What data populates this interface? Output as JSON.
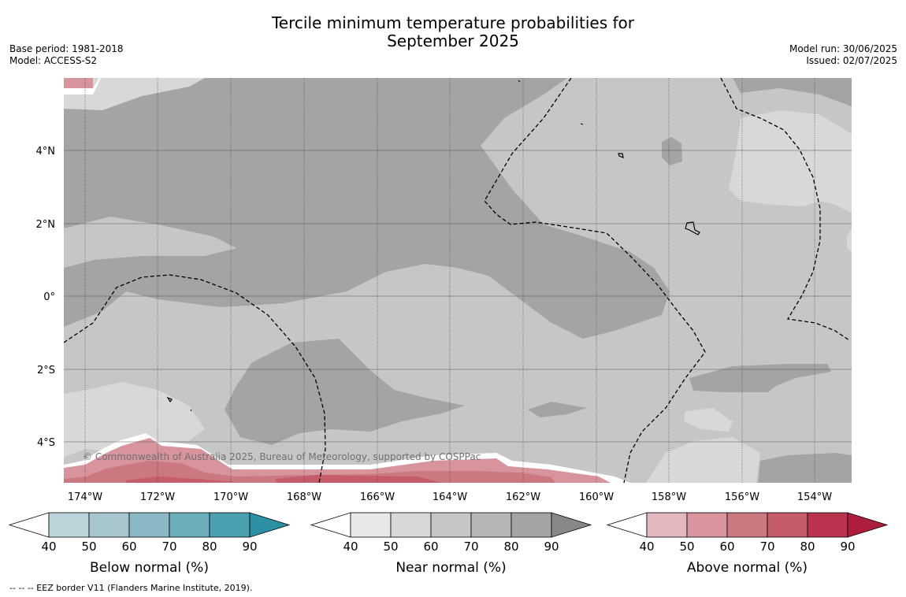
{
  "title_line1": "Tercile minimum temperature probabilities for",
  "title_line2": "September 2025",
  "base_period": "Base period: 1981-2018",
  "model": "Model: ACCESS-S2",
  "model_run": "Model run: 30/06/2025",
  "issued": "Issued: 02/07/2025",
  "copyright": "© Commonwealth of Australia 2025, Bureau of Meteorology, supported by COSPPac",
  "footnote": "--  --  -- EEZ border V11 (Flanders Marine Institute, 2019).",
  "lon_labels": [
    "174°W",
    "172°W",
    "170°W",
    "168°W",
    "166°W",
    "164°W",
    "162°W",
    "160°W",
    "158°W",
    "156°W",
    "154°W"
  ],
  "lat_labels": [
    "4°N",
    "2°N",
    "0°",
    "2°S",
    "4°S"
  ],
  "colorbars": [
    {
      "title": "Below normal (%)",
      "ticks": [
        "40",
        "50",
        "60",
        "70",
        "80",
        "90"
      ],
      "colors": [
        "#ffffff",
        "#bcd4da",
        "#a6c6cc",
        "#8ab8c4",
        "#6aaebc",
        "#4aa0b0",
        "#2e90a4"
      ]
    },
    {
      "title": "Near normal (%)",
      "ticks": [
        "40",
        "50",
        "60",
        "70",
        "80",
        "90"
      ],
      "colors": [
        "#ffffff",
        "#e8e8e8",
        "#d8d8d8",
        "#c6c6c6",
        "#b6b6b6",
        "#a4a4a4",
        "#888888"
      ]
    },
    {
      "title": "Above normal (%)",
      "ticks": [
        "40",
        "50",
        "60",
        "70",
        "80",
        "90"
      ],
      "colors": [
        "#ffffff",
        "#e2b8be",
        "#d8949c",
        "#cc7880",
        "#c45c6a",
        "#ba3450",
        "#ae1e3c"
      ]
    }
  ],
  "map_colors": {
    "near_50": "#d8d8d8",
    "near_60": "#c6c6c6",
    "near_70": "#a4a4a4",
    "above_50": "#d8949c",
    "above_60": "#cc7880",
    "above_70": "#c45c6a"
  }
}
